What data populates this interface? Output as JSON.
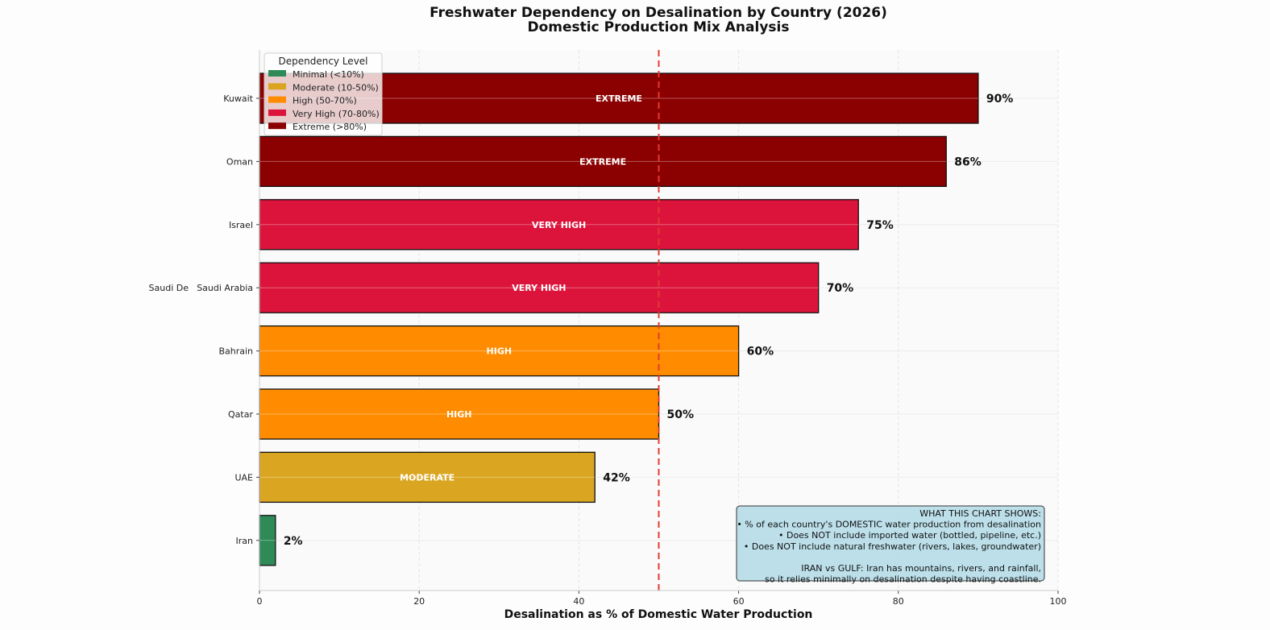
{
  "chart_data": {
    "type": "bar",
    "orientation": "horizontal",
    "title": "Freshwater Dependency on Desalination by Country (2026)",
    "subtitle": "Domestic Production Mix Analysis",
    "xlabel": "Desalination as % of Domestic Water Production",
    "ylabel": "",
    "xlim": [
      0,
      100
    ],
    "xticks": [
      "0",
      "20",
      "40",
      "60",
      "80",
      "100"
    ],
    "grid": true,
    "reference_line": {
      "x": 50,
      "style": "dashed",
      "color": "#e03c31"
    },
    "categories": [
      "Kuwait",
      "Oman",
      "Israel",
      "Saudi Arabia",
      "Bahrain",
      "Qatar",
      "UAE",
      "Iran"
    ],
    "ghost_tick_label": "Saudi De",
    "values": [
      90,
      86,
      75,
      70,
      60,
      50,
      42,
      2
    ],
    "value_labels": [
      "90%",
      "86%",
      "75%",
      "70%",
      "60%",
      "50%",
      "42%",
      "2%"
    ],
    "bar_labels": [
      "EXTREME",
      "EXTREME",
      "VERY HIGH",
      "VERY HIGH",
      "HIGH",
      "HIGH",
      "MODERATE",
      ""
    ],
    "bar_colors": [
      "#8b0000",
      "#8b0000",
      "#dc143c",
      "#dc143c",
      "#ff8c00",
      "#ff8c00",
      "#daa520",
      "#2e8b57"
    ],
    "legend": {
      "title": "Dependency Level",
      "placement": "top-left",
      "entries": [
        {
          "label": "Minimal (<10%)",
          "color": "#2e8b57"
        },
        {
          "label": "Moderate (10-50%)",
          "color": "#daa520"
        },
        {
          "label": "High (50-70%)",
          "color": "#ff8c00"
        },
        {
          "label": "Very High (70-80%)",
          "color": "#dc143c"
        },
        {
          "label": "Extreme (>80%)",
          "color": "#8b0000"
        }
      ]
    },
    "annotation": {
      "placement": "bottom-right",
      "background": "#add8e6",
      "lines": [
        "WHAT THIS CHART SHOWS:",
        "• % of each country's DOMESTIC water production from desalination",
        "• Does NOT include imported water (bottled, pipeline, etc.)",
        "• Does NOT include natural freshwater (rivers, lakes, groundwater)",
        "",
        "IRAN vs GULF: Iran has mountains, rivers, and rainfall,",
        "so it relies minimally on desalination despite having coastline."
      ]
    }
  }
}
